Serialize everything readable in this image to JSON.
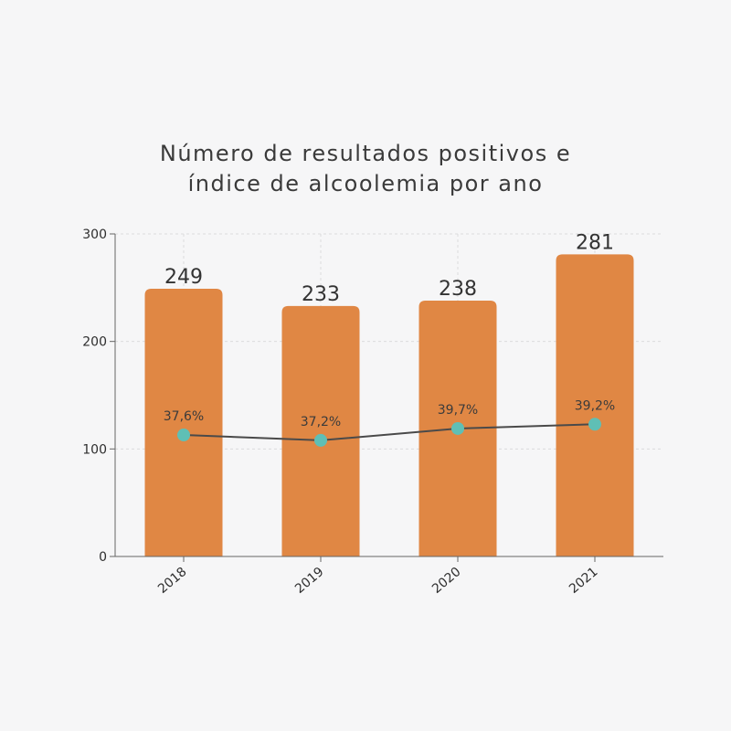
{
  "chart_data": {
    "type": "bar",
    "title_lines": [
      "Número de resultados positivos e",
      "índice de alcoolemia por ano"
    ],
    "categories": [
      "2018",
      "2019",
      "2020",
      "2021"
    ],
    "series": [
      {
        "kind": "bar",
        "values": [
          249,
          233,
          238,
          281
        ],
        "value_labels": [
          "249",
          "233",
          "238",
          "281"
        ],
        "color": "#e08744"
      },
      {
        "kind": "line",
        "values": [
          37.6,
          37.2,
          39.7,
          39.2
        ],
        "value_labels": [
          "37,6%",
          "37,2%",
          "39,7%",
          "39,2%"
        ],
        "plotted_on_left_axis": [
          113,
          108,
          119,
          123
        ],
        "line_color": "#4a4a4a",
        "marker_color": "#5fbfb5"
      }
    ],
    "ylim": [
      0,
      300
    ],
    "y_ticks": [
      0,
      100,
      200,
      300
    ],
    "grid": true,
    "grid_color": "#dcdcdc",
    "axis_color": "#666666",
    "xlabel": "",
    "ylabel": ""
  }
}
